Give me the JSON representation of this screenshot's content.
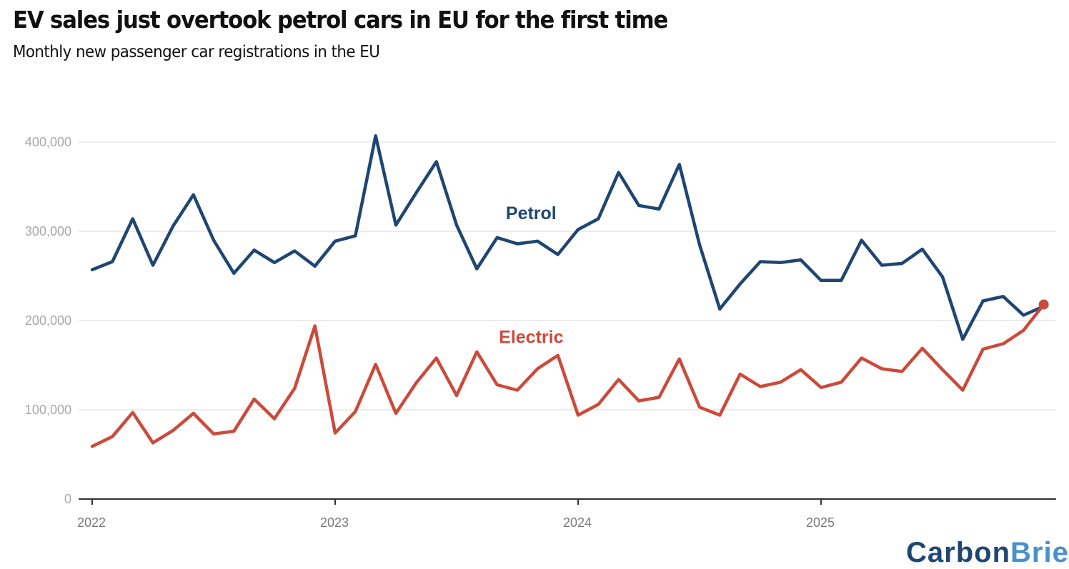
{
  "header": {
    "title": "EV sales just overtook petrol cars in EU for the first time",
    "subtitle": "Monthly new passenger car registrations in the EU"
  },
  "logo": {
    "part1": "Carbon",
    "part2": "Brief"
  },
  "colors": {
    "petrol": "#1f4672",
    "electric": "#cc4a3b",
    "grid": "#e6e6e6",
    "axis": "#333333"
  },
  "chart_data": {
    "type": "line",
    "title": "EV sales just overtook petrol cars in EU for the first time",
    "subtitle": "Monthly new passenger car registrations in the EU",
    "xlabel": "",
    "ylabel": "",
    "ylim": [
      0,
      400000
    ],
    "yticks": [
      0,
      100000,
      200000,
      300000,
      400000
    ],
    "ytick_labels": [
      "0",
      "100,000",
      "200,000",
      "300,000",
      "400,000"
    ],
    "xtick_labels": [
      "2022",
      "2023",
      "2024",
      "2025"
    ],
    "xtick_index": [
      0,
      12,
      24,
      36
    ],
    "grid": true,
    "legend": "inline labels",
    "x": [
      "2022-01",
      "2022-02",
      "2022-03",
      "2022-04",
      "2022-05",
      "2022-06",
      "2022-07",
      "2022-08",
      "2022-09",
      "2022-10",
      "2022-11",
      "2022-12",
      "2023-01",
      "2023-02",
      "2023-03",
      "2023-04",
      "2023-05",
      "2023-06",
      "2023-07",
      "2023-08",
      "2023-09",
      "2023-10",
      "2023-11",
      "2023-12",
      "2024-01",
      "2024-02",
      "2024-03",
      "2024-04",
      "2024-05",
      "2024-06",
      "2024-07",
      "2024-08",
      "2024-09",
      "2024-10",
      "2024-11",
      "2024-12",
      "2025-01",
      "2025-02",
      "2025-03",
      "2025-04",
      "2025-05",
      "2025-06",
      "2025-07",
      "2025-08",
      "2025-09",
      "2025-10",
      "2025-11",
      "2025-12"
    ],
    "series": [
      {
        "name": "Petrol",
        "label_anchor_index": 22,
        "label_value": 321000,
        "values": [
          257000,
          266000,
          314000,
          262000,
          306000,
          341000,
          290000,
          253000,
          279000,
          265000,
          278000,
          261000,
          289000,
          295000,
          407000,
          307000,
          343000,
          378000,
          307000,
          258000,
          293000,
          286000,
          289000,
          274000,
          302000,
          314000,
          366000,
          329000,
          325000,
          375000,
          285000,
          213000,
          241000,
          266000,
          265000,
          268000,
          245000,
          245000,
          290000,
          262000,
          264000,
          280000,
          249000,
          179000,
          222000,
          227000,
          206000,
          216000
        ]
      },
      {
        "name": "Electric",
        "label_anchor_index": 22,
        "label_value": 182000,
        "end_marker": true,
        "values": [
          59000,
          70000,
          97000,
          63000,
          77000,
          96000,
          73000,
          76000,
          112000,
          90000,
          124000,
          194000,
          74000,
          98000,
          151000,
          96000,
          130000,
          158000,
          116000,
          165000,
          128000,
          122000,
          146000,
          161000,
          94000,
          106000,
          134000,
          110000,
          114000,
          157000,
          103000,
          94000,
          140000,
          126000,
          131000,
          145000,
          125000,
          131000,
          158000,
          146000,
          143000,
          169000,
          145000,
          122000,
          168000,
          174000,
          189000,
          218000
        ]
      }
    ]
  }
}
